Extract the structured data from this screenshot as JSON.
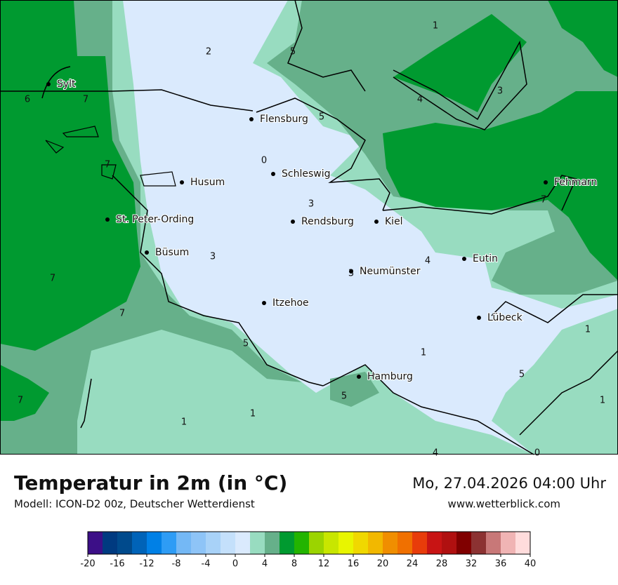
{
  "header": {
    "title": "Temperatur in 2m (in °C)",
    "subtitle": "Modell: ICON-D2 00z, Deutscher Wetterdienst",
    "date": "Mo, 27.04.2026 04:00 Uhr",
    "website": "www.wetterblick.com"
  },
  "cities": [
    "Sylt",
    "Flensburg",
    "Schleswig",
    "Husum",
    "Fehmarn",
    "St. Peter-Ording",
    "Rendsburg",
    "Kiel",
    "Büsum",
    "Neumünster",
    "Eutin",
    "Itzehoe",
    "Lübeck",
    "Hamburg"
  ],
  "contour_labels": [
    1,
    2,
    5,
    4,
    3,
    6,
    7,
    5,
    0,
    7,
    3,
    7,
    3,
    4,
    3,
    7,
    7,
    1,
    1,
    5,
    5,
    5,
    1,
    7,
    1,
    1,
    4,
    0
  ],
  "colorbar": {
    "ticks": [
      -20,
      -16,
      -12,
      -8,
      -4,
      0,
      4,
      8,
      12,
      16,
      20,
      24,
      28,
      32,
      36,
      40
    ],
    "colors": [
      "#3c0f87",
      "#003a80",
      "#004a8c",
      "#0063b8",
      "#0080e6",
      "#2e9cf5",
      "#74b8f5",
      "#8ec4f7",
      "#a8d2f8",
      "#c4e0fb",
      "#daeafd",
      "#98dcc0",
      "#66b08a",
      "#009a30",
      "#23b400",
      "#9bd400",
      "#c8e600",
      "#e8f500",
      "#f0d800",
      "#f2b800",
      "#f08e00",
      "#f07000",
      "#e83c0a",
      "#c81414",
      "#b01010",
      "#800000",
      "#8c3232",
      "#c87878",
      "#f0b4b4",
      "#ffdcdc"
    ]
  }
}
